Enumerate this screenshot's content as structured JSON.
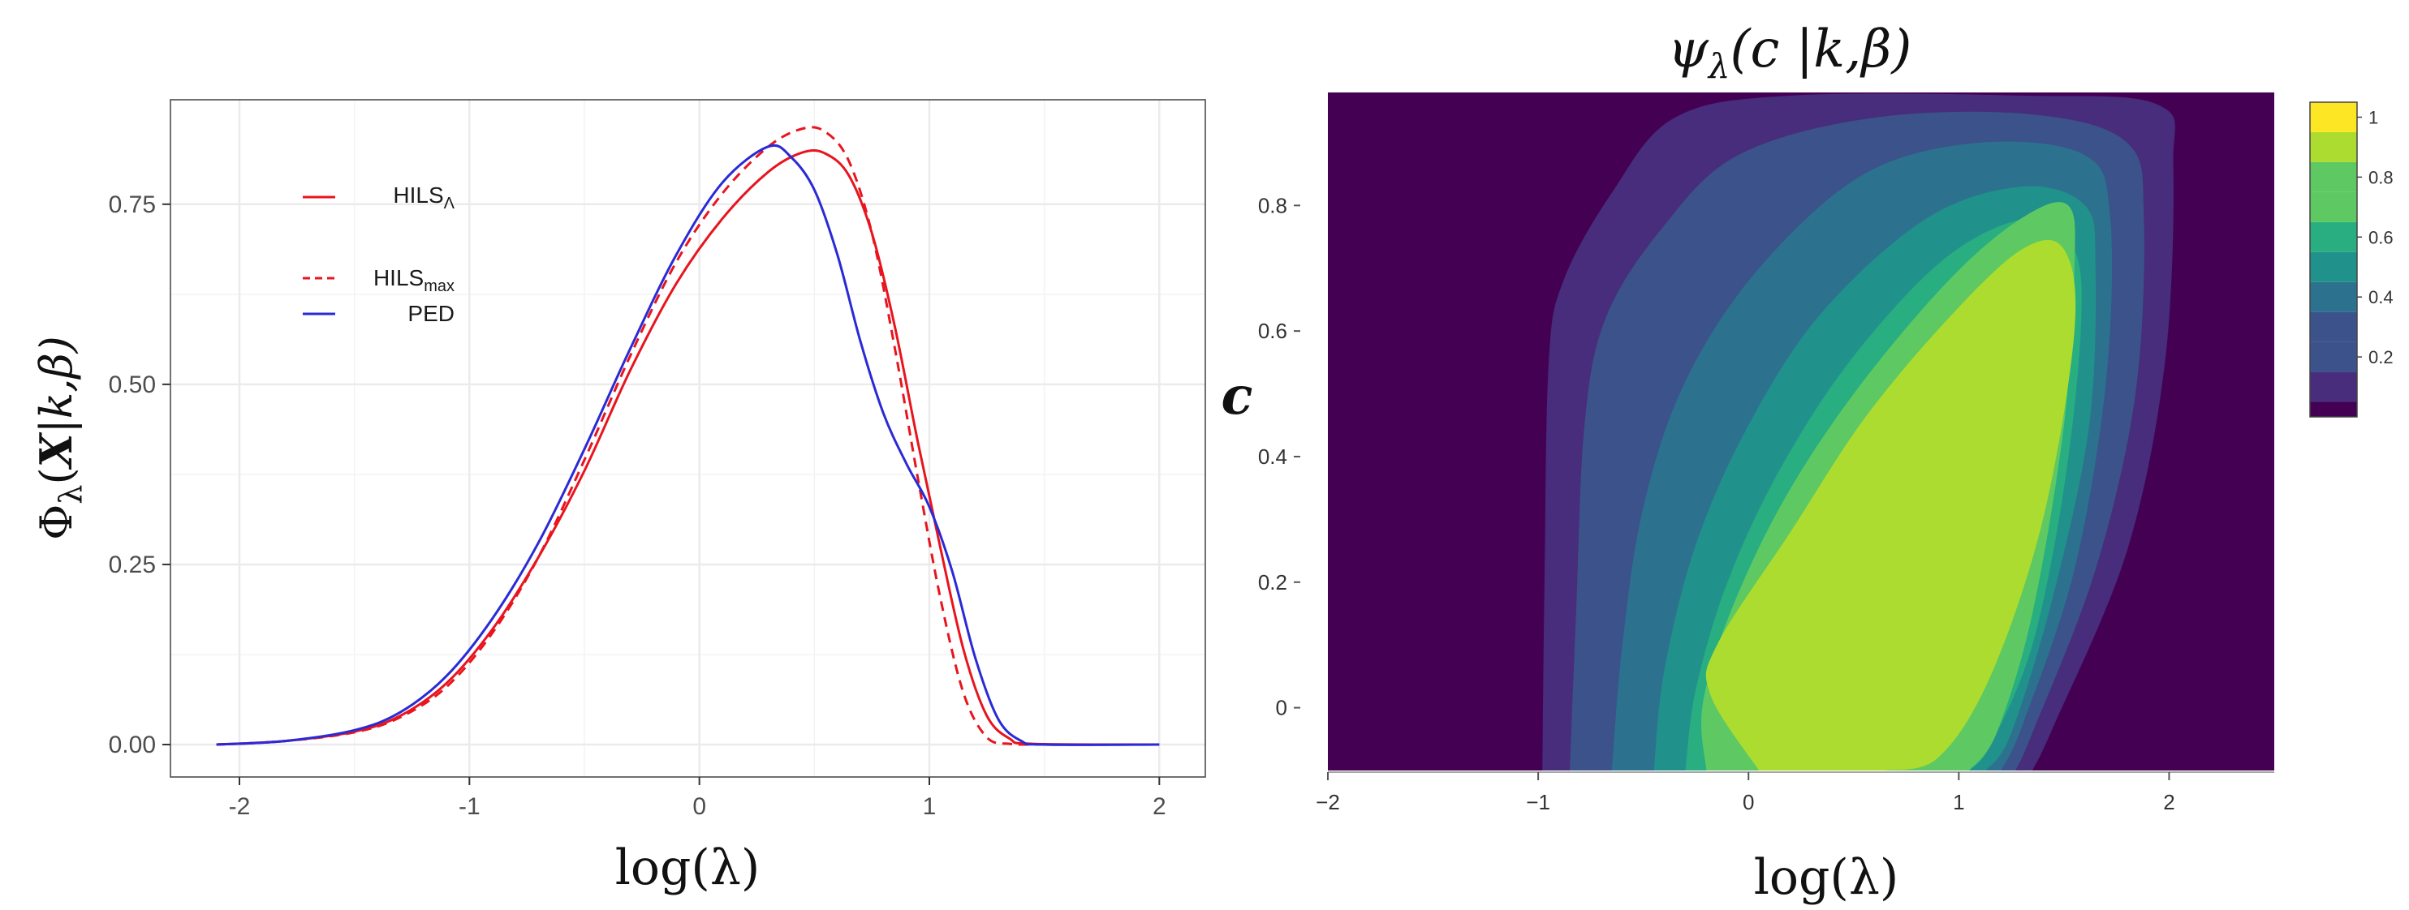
{
  "colors": {
    "hils_lambda": "#e8141e",
    "hils_max": "#e8141e",
    "ped": "#2a2ad6",
    "grid": "#ebebeb",
    "panel_border": "#4d4d4d",
    "viridis": [
      "#440154",
      "#472d7b",
      "#3b528b",
      "#2c728e",
      "#21918c",
      "#28ae80",
      "#5ec962",
      "#addc30",
      "#fde725"
    ]
  },
  "chart_data": [
    {
      "type": "line",
      "title": "",
      "xlabel": "log(λ)",
      "ylabel": "Φλ(X|k,β)",
      "ylabel_parts": {
        "phi": "Φ",
        "sub": "λ",
        "rest": "(",
        "bold": "X",
        "tail": "|k,β)"
      },
      "xlim": [
        -2.3,
        2.2
      ],
      "ylim": [
        -0.045,
        0.895
      ],
      "xticks": [
        -2,
        -1,
        0,
        1,
        2
      ],
      "xtick_labels": [
        "-2",
        "-1",
        "0",
        "1",
        "2"
      ],
      "yticks": [
        0,
        0.25,
        0.5,
        0.75
      ],
      "ytick_labels": [
        "0.00",
        "0.25",
        "0.50",
        "0.75"
      ],
      "grid": true,
      "legend_position": "top-left",
      "legend": [
        {
          "base": "HILS",
          "sub": "Λ",
          "style": "solid",
          "color_key": "hils_lambda"
        },
        {
          "base": "HILS",
          "sub": "max",
          "style": "dashed",
          "color_key": "hils_max"
        },
        {
          "base": "PED",
          "sub": "",
          "style": "solid",
          "color_key": "ped"
        }
      ],
      "series": [
        {
          "name": "HILS_Λ",
          "style": "solid",
          "color_key": "hils_lambda",
          "x": [
            -2.1,
            -1.8,
            -1.5,
            -1.3,
            -1.1,
            -0.9,
            -0.7,
            -0.5,
            -0.3,
            -0.1,
            0.1,
            0.3,
            0.45,
            0.55,
            0.65,
            0.75,
            0.85,
            0.95,
            1.05,
            1.15,
            1.25,
            1.35,
            1.45,
            2.0
          ],
          "y": [
            0.0,
            0.005,
            0.018,
            0.04,
            0.085,
            0.16,
            0.26,
            0.38,
            0.52,
            0.64,
            0.73,
            0.795,
            0.822,
            0.82,
            0.79,
            0.71,
            0.58,
            0.42,
            0.27,
            0.13,
            0.04,
            0.008,
            0.001,
            0.0
          ]
        },
        {
          "name": "HILS_max",
          "style": "dashed",
          "color_key": "hils_max",
          "x": [
            -2.1,
            -1.8,
            -1.5,
            -1.3,
            -1.1,
            -0.9,
            -0.7,
            -0.5,
            -0.3,
            -0.1,
            0.1,
            0.3,
            0.45,
            0.55,
            0.65,
            0.75,
            0.85,
            0.95,
            1.05,
            1.15,
            1.25,
            1.35,
            1.45,
            2.0
          ],
          "y": [
            0.0,
            0.005,
            0.017,
            0.038,
            0.08,
            0.155,
            0.26,
            0.395,
            0.54,
            0.67,
            0.765,
            0.83,
            0.855,
            0.85,
            0.81,
            0.71,
            0.55,
            0.37,
            0.2,
            0.07,
            0.01,
            0.001,
            0.0,
            0.0
          ]
        },
        {
          "name": "PED",
          "style": "solid",
          "color_key": "ped",
          "x": [
            -2.1,
            -1.8,
            -1.5,
            -1.3,
            -1.1,
            -0.9,
            -0.7,
            -0.5,
            -0.3,
            -0.1,
            0.1,
            0.3,
            0.4,
            0.5,
            0.6,
            0.7,
            0.8,
            0.9,
            1.0,
            1.1,
            1.2,
            1.3,
            1.4,
            1.5,
            2.0
          ],
          "y": [
            0.0,
            0.005,
            0.02,
            0.045,
            0.095,
            0.175,
            0.28,
            0.41,
            0.55,
            0.68,
            0.78,
            0.83,
            0.815,
            0.77,
            0.68,
            0.56,
            0.46,
            0.39,
            0.33,
            0.24,
            0.12,
            0.035,
            0.005,
            0.0,
            0.0
          ]
        }
      ]
    },
    {
      "type": "heatmap",
      "title": "ψλ(c |k,β)",
      "title_parts": {
        "psi": "ψ",
        "sub": "λ",
        "rest": "(c |k,β)"
      },
      "xlabel": "log(λ)",
      "ylabel": "c",
      "xlim": [
        -2.0,
        2.5
      ],
      "ylim": [
        -0.1,
        0.98
      ],
      "xticks": [
        -2,
        -1,
        0,
        1,
        2
      ],
      "xtick_labels": [
        "−2",
        "−1",
        "0",
        "1",
        "2"
      ],
      "yticks": [
        0,
        0.2,
        0.4,
        0.6,
        0.8
      ],
      "ytick_labels": [
        "0",
        "0.2",
        "0.4",
        "0.6",
        "0.8"
      ],
      "colorbar": {
        "range": [
          0,
          1.05
        ],
        "levels": [
          0.05,
          0.15,
          0.25,
          0.35,
          0.45,
          0.55,
          0.65,
          0.75,
          0.85,
          0.95,
          1.05
        ],
        "ticks": [
          0.2,
          0.4,
          0.6,
          0.8,
          1
        ],
        "tick_labels": [
          "0.2",
          "0.4",
          "0.6",
          "0.8",
          "1"
        ]
      },
      "contours": [
        {
          "level": 0.1,
          "color_index": 1,
          "points": [
            [
              -0.98,
              -0.1
            ],
            [
              -0.97,
              0.2
            ],
            [
              -0.95,
              0.55
            ],
            [
              -0.88,
              0.68
            ],
            [
              -0.65,
              0.82
            ],
            [
              -0.35,
              0.94
            ],
            [
              0.2,
              0.975
            ],
            [
              1.3,
              0.975
            ],
            [
              1.95,
              0.96
            ],
            [
              2.02,
              0.86
            ],
            [
              1.98,
              0.55
            ],
            [
              1.8,
              0.25
            ],
            [
              1.45,
              -0.03
            ],
            [
              1.35,
              -0.1
            ]
          ]
        },
        {
          "level": 0.3,
          "color_index": 2,
          "points": [
            [
              -0.85,
              -0.1
            ],
            [
              -0.82,
              0.15
            ],
            [
              -0.78,
              0.45
            ],
            [
              -0.68,
              0.62
            ],
            [
              -0.42,
              0.76
            ],
            [
              -0.05,
              0.88
            ],
            [
              0.6,
              0.94
            ],
            [
              1.35,
              0.945
            ],
            [
              1.8,
              0.9
            ],
            [
              1.88,
              0.78
            ],
            [
              1.84,
              0.5
            ],
            [
              1.65,
              0.22
            ],
            [
              1.35,
              -0.04
            ],
            [
              1.27,
              -0.1
            ]
          ]
        },
        {
          "level": 0.4,
          "color_index": 3,
          "points": [
            [
              -0.65,
              -0.1
            ],
            [
              -0.6,
              0.1
            ],
            [
              -0.5,
              0.32
            ],
            [
              -0.3,
              0.52
            ],
            [
              0.05,
              0.7
            ],
            [
              0.55,
              0.85
            ],
            [
              1.1,
              0.9
            ],
            [
              1.6,
              0.88
            ],
            [
              1.72,
              0.78
            ],
            [
              1.7,
              0.52
            ],
            [
              1.55,
              0.22
            ],
            [
              1.3,
              -0.03
            ],
            [
              1.2,
              -0.1
            ]
          ]
        },
        {
          "level": 0.5,
          "color_index": 4,
          "points": [
            [
              -0.45,
              -0.1
            ],
            [
              -0.4,
              0.06
            ],
            [
              -0.25,
              0.26
            ],
            [
              0.0,
              0.45
            ],
            [
              0.35,
              0.63
            ],
            [
              0.85,
              0.78
            ],
            [
              1.3,
              0.83
            ],
            [
              1.6,
              0.8
            ],
            [
              1.65,
              0.7
            ],
            [
              1.62,
              0.45
            ],
            [
              1.45,
              0.18
            ],
            [
              1.25,
              -0.04
            ],
            [
              1.13,
              -0.1
            ]
          ]
        },
        {
          "level": 0.6,
          "color_index": 5,
          "points": [
            [
              -0.3,
              -0.1
            ],
            [
              -0.25,
              0.03
            ],
            [
              -0.1,
              0.2
            ],
            [
              0.15,
              0.38
            ],
            [
              0.5,
              0.56
            ],
            [
              0.95,
              0.72
            ],
            [
              1.35,
              0.78
            ],
            [
              1.55,
              0.73
            ],
            [
              1.58,
              0.6
            ],
            [
              1.5,
              0.35
            ],
            [
              1.35,
              0.1
            ],
            [
              1.15,
              -0.06
            ],
            [
              1.05,
              -0.1
            ]
          ]
        },
        {
          "level": 0.7,
          "color_index": 6,
          "points": [
            [
              -0.2,
              -0.1
            ],
            [
              -0.22,
              0.0
            ],
            [
              -0.1,
              0.14
            ],
            [
              0.15,
              0.32
            ],
            [
              0.5,
              0.5
            ],
            [
              0.95,
              0.68
            ],
            [
              1.3,
              0.78
            ],
            [
              1.52,
              0.8
            ],
            [
              1.55,
              0.7
            ],
            [
              1.5,
              0.45
            ],
            [
              1.35,
              0.15
            ],
            [
              1.18,
              -0.04
            ],
            [
              1.05,
              -0.1
            ]
          ]
        },
        {
          "level": 0.9,
          "color_index": 7,
          "points": [
            [
              0.05,
              -0.1
            ],
            [
              -0.18,
              0.02
            ],
            [
              -0.15,
              0.1
            ],
            [
              0.2,
              0.28
            ],
            [
              0.55,
              0.46
            ],
            [
              0.95,
              0.62
            ],
            [
              1.3,
              0.73
            ],
            [
              1.5,
              0.73
            ],
            [
              1.55,
              0.6
            ],
            [
              1.4,
              0.3
            ],
            [
              1.15,
              0.05
            ],
            [
              0.9,
              -0.08
            ],
            [
              0.65,
              -0.1
            ]
          ]
        }
      ]
    }
  ]
}
